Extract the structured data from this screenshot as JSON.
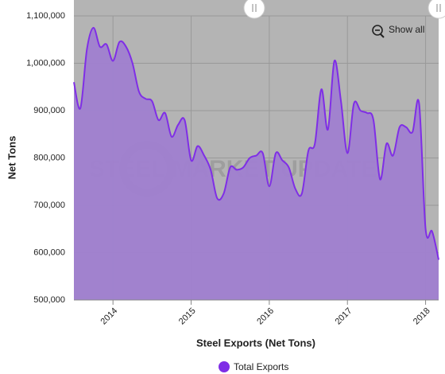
{
  "chart_data": {
    "type": "area",
    "title": "Steel Exports (Net Tons)",
    "y_label": "Net Tons",
    "watermark": "STEEL MARKET UPDATE",
    "button": "Show all",
    "x": [
      2013.5,
      2013.583,
      2013.667,
      2013.75,
      2013.833,
      2013.917,
      2014,
      2014.083,
      2014.167,
      2014.25,
      2014.333,
      2014.417,
      2014.5,
      2014.583,
      2014.667,
      2014.75,
      2014.833,
      2014.917,
      2015,
      2015.083,
      2015.167,
      2015.25,
      2015.333,
      2015.417,
      2015.5,
      2015.583,
      2015.667,
      2015.75,
      2015.833,
      2015.917,
      2016,
      2016.083,
      2016.167,
      2016.25,
      2016.333,
      2016.417,
      2016.5,
      2016.583,
      2016.667,
      2016.75,
      2016.833,
      2016.917,
      2017,
      2017.083,
      2017.167,
      2017.25,
      2017.333,
      2017.417,
      2017.5,
      2017.583,
      2017.667,
      2017.75,
      2017.833,
      2017.917,
      2018,
      2018.083,
      2018.167
    ],
    "series": [
      {
        "name": "Total Exports",
        "color": "#7f2ee6",
        "fill": "#a07fd0",
        "values": [
          960000,
          905000,
          1030000,
          1075000,
          1035000,
          1040000,
          1005000,
          1045000,
          1035000,
          1000000,
          940000,
          925000,
          920000,
          880000,
          895000,
          845000,
          870000,
          880000,
          795000,
          825000,
          805000,
          775000,
          715000,
          725000,
          780000,
          775000,
          780000,
          800000,
          805000,
          810000,
          740000,
          810000,
          795000,
          780000,
          735000,
          725000,
          815000,
          830000,
          945000,
          860000,
          1005000,
          920000,
          810000,
          915000,
          900000,
          895000,
          880000,
          755000,
          830000,
          805000,
          865000,
          865000,
          855000,
          915000,
          650000,
          645000,
          585000
        ]
      }
    ],
    "xlim": [
      2013.5,
      2018.167
    ],
    "xticks": [
      2014,
      2015,
      2016,
      2017,
      2018
    ],
    "ylim": [
      500000,
      1100000
    ],
    "yticks": [
      {
        "value": 500000,
        "label": "500,000"
      },
      {
        "value": 600000,
        "label": "600,000"
      },
      {
        "value": 700000,
        "label": "700,000"
      },
      {
        "value": 800000,
        "label": "800,000"
      },
      {
        "value": 900000,
        "label": "900,000"
      },
      {
        "value": 1000000,
        "label": "1,000,000"
      },
      {
        "value": 1100000,
        "label": "1,100,000"
      }
    ],
    "grid": true,
    "plot_background": "#b4b4b4",
    "legend": "bottom"
  }
}
